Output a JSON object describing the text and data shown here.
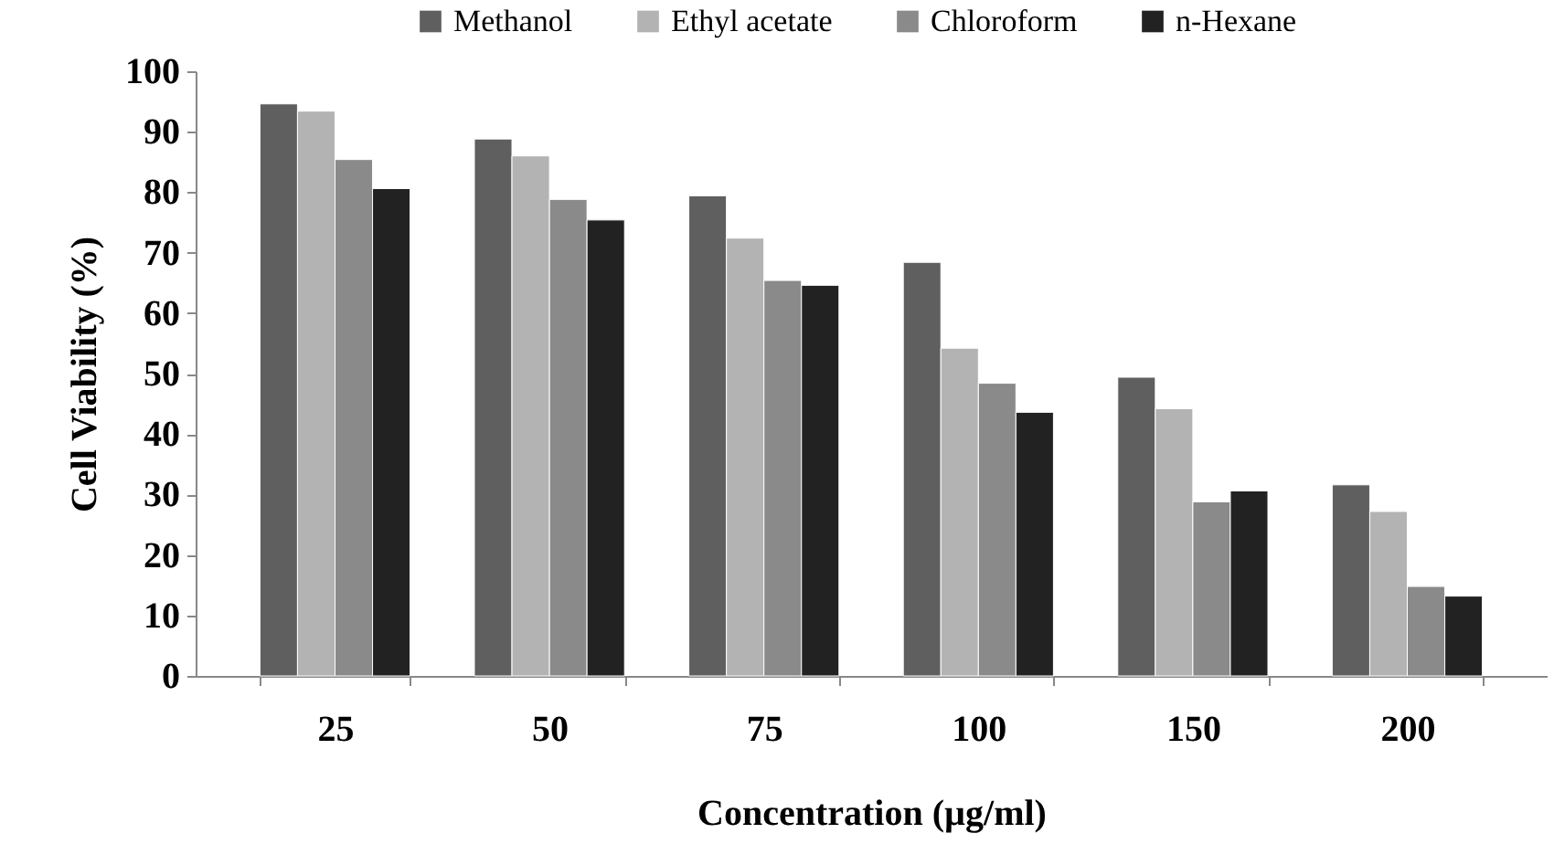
{
  "chart_data": {
    "type": "bar",
    "xlabel": "Concentration (µg/ml)",
    "ylabel": "Cell Viability (%)",
    "categories": [
      "25",
      "50",
      "75",
      "100",
      "150",
      "200"
    ],
    "series": [
      {
        "name": "Methanol",
        "color": "#5f5f5f",
        "values": [
          94.6,
          88.8,
          79.4,
          68.4,
          49.4,
          31.6
        ]
      },
      {
        "name": "Ethyl acetate",
        "color": "#b3b3b3",
        "values": [
          93.4,
          86.0,
          72.4,
          54.2,
          44.2,
          27.2
        ]
      },
      {
        "name": "Chloroform",
        "color": "#8a8a8a",
        "values": [
          85.4,
          78.8,
          65.4,
          48.4,
          28.8,
          14.8
        ]
      },
      {
        "name": "n-Hexane",
        "color": "#222222",
        "values": [
          80.6,
          75.4,
          64.6,
          43.6,
          30.6,
          13.2
        ]
      }
    ],
    "ylim": [
      0,
      100
    ],
    "yticks": [
      0,
      10,
      20,
      30,
      40,
      50,
      60,
      70,
      80,
      90,
      100
    ],
    "grid": false,
    "legend": "top"
  }
}
